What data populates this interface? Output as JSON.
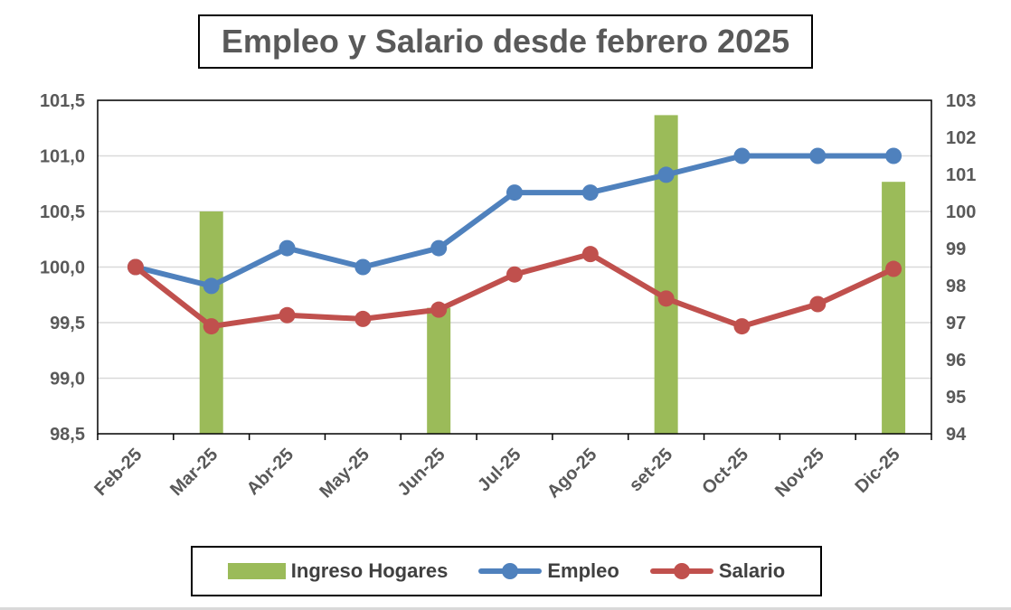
{
  "chart_data": {
    "type": "bar+line",
    "title": "Empleo y Salario desde febrero 2025",
    "categories": [
      "Feb-25",
      "Mar-25",
      "Abr-25",
      "May-25",
      "Jun-25",
      "Jul-25",
      "Ago-25",
      "set-25",
      "Oct-25",
      "Nov-25",
      "Dic-25"
    ],
    "series": [
      {
        "name": "Ingreso Hogares",
        "type": "bar",
        "axis": "right",
        "color": "#9BBB59",
        "values": [
          null,
          100.0,
          null,
          null,
          97.4,
          null,
          null,
          102.6,
          null,
          null,
          100.8
        ]
      },
      {
        "name": "Empleo",
        "type": "line",
        "axis": "left",
        "color": "#4F81BD",
        "values": [
          100.0,
          99.83,
          100.17,
          100.0,
          100.17,
          100.67,
          100.67,
          100.83,
          101.0,
          101.0,
          101.0
        ]
      },
      {
        "name": "Salario",
        "type": "line",
        "axis": "right",
        "color": "#C0504D",
        "values": [
          98.5,
          96.9,
          97.2,
          97.1,
          97.35,
          98.3,
          98.85,
          97.65,
          96.9,
          97.5,
          98.45
        ]
      }
    ],
    "y_left": {
      "range": [
        98.5,
        101.5
      ],
      "ticks": [
        "98,5",
        "99,0",
        "99,5",
        "100,0",
        "100,5",
        "101,0",
        "101,5"
      ]
    },
    "y_right": {
      "range": [
        94,
        103
      ],
      "ticks": [
        "94",
        "95",
        "96",
        "97",
        "98",
        "99",
        "100",
        "101",
        "102",
        "103"
      ]
    },
    "grid": true,
    "legend_position": "bottom"
  }
}
